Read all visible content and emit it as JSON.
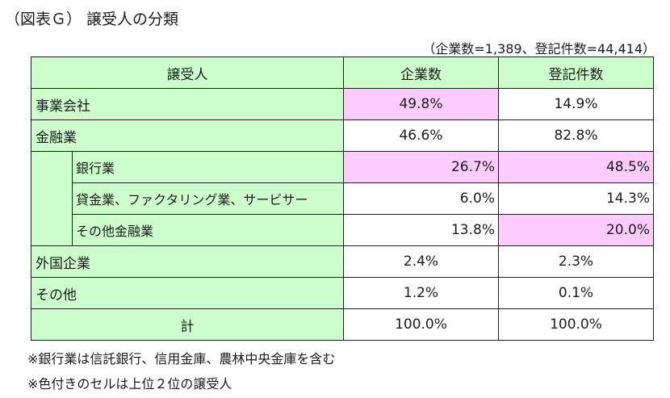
{
  "title": "（図表Ｇ） 譲受人の分類",
  "summary": "（企業数=1,389、登記件数=44,414）",
  "table": {
    "headers": [
      "譲受人",
      "企業数",
      "登記件数"
    ],
    "rows": [
      {
        "label": "事業会社",
        "companies": "49.8%",
        "registrations": "14.9%"
      },
      {
        "label": "金融業",
        "companies": "46.6%",
        "registrations": "82.8%"
      },
      {
        "label": "銀行業",
        "companies": "26.7%",
        "registrations": "48.5%"
      },
      {
        "label": "貸金業、ファクタリング業、サービサー",
        "companies": "6.0%",
        "registrations": "14.3%"
      },
      {
        "label": "その他金融業",
        "companies": "13.8%",
        "registrations": "20.0%"
      },
      {
        "label": "外国企業",
        "companies": "2.4%",
        "registrations": "2.3%"
      },
      {
        "label": "その他",
        "companies": "1.2%",
        "registrations": "0.1%"
      },
      {
        "label": "計",
        "companies": "100.0%",
        "registrations": "100.0%"
      }
    ]
  },
  "notes": [
    "※銀行業は信託銀行、信用金庫、農林中央金庫を含む",
    "※色付きのセルは上位２位の譲受人"
  ],
  "colors": {
    "header_fill": "#ccffcc",
    "highlight_fill": "#ffccff"
  }
}
